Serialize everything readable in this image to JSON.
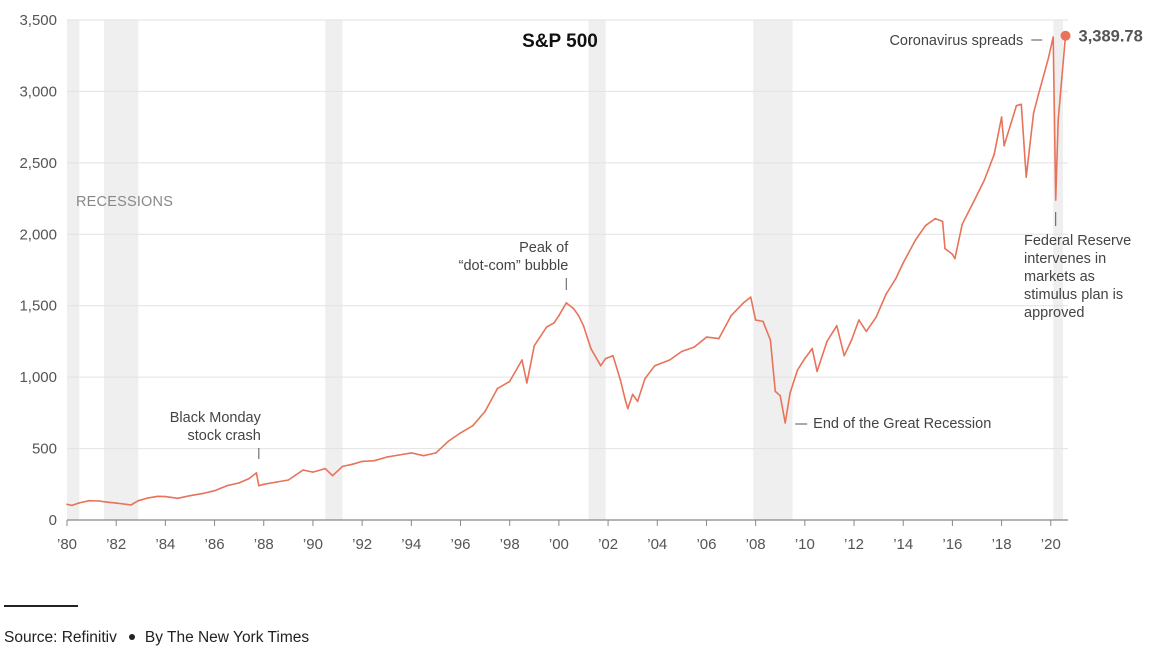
{
  "chart_data": {
    "type": "line",
    "title": "S&P 500",
    "x_start": 1980.0,
    "x_end": 2020.7,
    "ylim": [
      0,
      3500
    ],
    "grid": true,
    "y_ticks": [
      {
        "value": 0,
        "label": "0"
      },
      {
        "value": 500,
        "label": "500"
      },
      {
        "value": 1000,
        "label": "1,000"
      },
      {
        "value": 1500,
        "label": "1,500"
      },
      {
        "value": 2000,
        "label": "2,000"
      },
      {
        "value": 2500,
        "label": "2,500"
      },
      {
        "value": 3000,
        "label": "3,000"
      },
      {
        "value": 3500,
        "label": "3,500"
      }
    ],
    "x_ticks": [
      {
        "value": 1980,
        "label": "’80"
      },
      {
        "value": 1982,
        "label": "’82"
      },
      {
        "value": 1984,
        "label": "’84"
      },
      {
        "value": 1986,
        "label": "’86"
      },
      {
        "value": 1988,
        "label": "’88"
      },
      {
        "value": 1990,
        "label": "’90"
      },
      {
        "value": 1992,
        "label": "’92"
      },
      {
        "value": 1994,
        "label": "’94"
      },
      {
        "value": 1996,
        "label": "’96"
      },
      {
        "value": 1998,
        "label": "’98"
      },
      {
        "value": 2000,
        "label": "’00"
      },
      {
        "value": 2002,
        "label": "’02"
      },
      {
        "value": 2004,
        "label": "’04"
      },
      {
        "value": 2006,
        "label": "’06"
      },
      {
        "value": 2008,
        "label": "’08"
      },
      {
        "value": 2010,
        "label": "’10"
      },
      {
        "value": 2012,
        "label": "’12"
      },
      {
        "value": 2014,
        "label": "’14"
      },
      {
        "value": 2016,
        "label": "’16"
      },
      {
        "value": 2018,
        "label": "’18"
      },
      {
        "value": 2020,
        "label": "’20"
      }
    ],
    "recessions_label": "RECESSIONS",
    "recessions": [
      [
        1980.0,
        1980.5
      ],
      [
        1981.5,
        1982.9
      ],
      [
        1990.5,
        1991.2
      ],
      [
        2001.2,
        2001.9
      ],
      [
        2007.9,
        2009.5
      ],
      [
        2020.1,
        2020.5
      ]
    ],
    "series": [
      {
        "color": "#e8735a",
        "points": [
          [
            1980.0,
            110
          ],
          [
            1980.2,
            102
          ],
          [
            1980.5,
            120
          ],
          [
            1980.9,
            135
          ],
          [
            1981.3,
            133
          ],
          [
            1981.6,
            125
          ],
          [
            1982.0,
            118
          ],
          [
            1982.3,
            112
          ],
          [
            1982.6,
            105
          ],
          [
            1982.9,
            135
          ],
          [
            1983.3,
            155
          ],
          [
            1983.7,
            166
          ],
          [
            1984.0,
            164
          ],
          [
            1984.5,
            152
          ],
          [
            1985.0,
            170
          ],
          [
            1985.5,
            185
          ],
          [
            1986.0,
            205
          ],
          [
            1986.5,
            240
          ],
          [
            1987.0,
            260
          ],
          [
            1987.4,
            290
          ],
          [
            1987.7,
            330
          ],
          [
            1987.8,
            240
          ],
          [
            1988.0,
            250
          ],
          [
            1988.5,
            265
          ],
          [
            1989.0,
            280
          ],
          [
            1989.6,
            350
          ],
          [
            1990.0,
            335
          ],
          [
            1990.5,
            360
          ],
          [
            1990.8,
            310
          ],
          [
            1991.2,
            375
          ],
          [
            1991.6,
            390
          ],
          [
            1992.0,
            410
          ],
          [
            1992.5,
            415
          ],
          [
            1993.0,
            440
          ],
          [
            1993.5,
            455
          ],
          [
            1994.0,
            470
          ],
          [
            1994.5,
            450
          ],
          [
            1995.0,
            470
          ],
          [
            1995.5,
            550
          ],
          [
            1996.0,
            610
          ],
          [
            1996.5,
            660
          ],
          [
            1997.0,
            760
          ],
          [
            1997.5,
            920
          ],
          [
            1998.0,
            970
          ],
          [
            1998.5,
            1120
          ],
          [
            1998.7,
            960
          ],
          [
            1999.0,
            1220
          ],
          [
            1999.5,
            1350
          ],
          [
            1999.8,
            1380
          ],
          [
            2000.0,
            1430
          ],
          [
            2000.3,
            1520
          ],
          [
            2000.6,
            1480
          ],
          [
            2000.8,
            1430
          ],
          [
            2001.0,
            1360
          ],
          [
            2001.3,
            1200
          ],
          [
            2001.7,
            1080
          ],
          [
            2001.9,
            1130
          ],
          [
            2002.2,
            1150
          ],
          [
            2002.5,
            980
          ],
          [
            2002.7,
            840
          ],
          [
            2002.8,
            780
          ],
          [
            2003.0,
            880
          ],
          [
            2003.2,
            830
          ],
          [
            2003.5,
            990
          ],
          [
            2003.9,
            1080
          ],
          [
            2004.5,
            1120
          ],
          [
            2005.0,
            1180
          ],
          [
            2005.5,
            1210
          ],
          [
            2006.0,
            1280
          ],
          [
            2006.5,
            1270
          ],
          [
            2007.0,
            1430
          ],
          [
            2007.5,
            1520
          ],
          [
            2007.8,
            1560
          ],
          [
            2008.0,
            1400
          ],
          [
            2008.3,
            1390
          ],
          [
            2008.6,
            1260
          ],
          [
            2008.8,
            900
          ],
          [
            2009.0,
            870
          ],
          [
            2009.2,
            680
          ],
          [
            2009.4,
            890
          ],
          [
            2009.7,
            1050
          ],
          [
            2010.0,
            1130
          ],
          [
            2010.3,
            1200
          ],
          [
            2010.5,
            1040
          ],
          [
            2010.9,
            1250
          ],
          [
            2011.3,
            1360
          ],
          [
            2011.6,
            1150
          ],
          [
            2011.9,
            1260
          ],
          [
            2012.2,
            1400
          ],
          [
            2012.5,
            1320
          ],
          [
            2012.9,
            1420
          ],
          [
            2013.3,
            1580
          ],
          [
            2013.7,
            1690
          ],
          [
            2014.0,
            1800
          ],
          [
            2014.5,
            1960
          ],
          [
            2014.9,
            2060
          ],
          [
            2015.3,
            2110
          ],
          [
            2015.6,
            2090
          ],
          [
            2015.7,
            1900
          ],
          [
            2016.0,
            1860
          ],
          [
            2016.1,
            1830
          ],
          [
            2016.4,
            2070
          ],
          [
            2016.9,
            2240
          ],
          [
            2017.3,
            2380
          ],
          [
            2017.7,
            2560
          ],
          [
            2018.0,
            2820
          ],
          [
            2018.1,
            2620
          ],
          [
            2018.6,
            2900
          ],
          [
            2018.8,
            2910
          ],
          [
            2019.0,
            2400
          ],
          [
            2019.3,
            2850
          ],
          [
            2019.5,
            2980
          ],
          [
            2019.9,
            3230
          ],
          [
            2020.1,
            3380
          ],
          [
            2020.2,
            2240
          ],
          [
            2020.3,
            2800
          ],
          [
            2020.45,
            3100
          ],
          [
            2020.6,
            3389.78
          ]
        ]
      }
    ],
    "annotations": [
      {
        "lines": [
          "Black Monday",
          "stock crash"
        ],
        "x": 1987.8
      },
      {
        "lines": [
          "Peak of",
          "“dot-com” bubble"
        ],
        "x": 2000.3
      },
      {
        "lines": [
          "End of the Great Recession"
        ],
        "x": 2009.2
      },
      {
        "lines": [
          "Coronavirus spreads"
        ],
        "x": 2020.1
      },
      {
        "lines": [
          "Federal Reserve",
          "intervenes in",
          "markets as",
          "stimulus plan is",
          "approved"
        ],
        "x": 2020.2
      }
    ],
    "last_value_label": "3,389.78"
  },
  "footer": {
    "source": "Source: Refinitiv",
    "byline": "By The New York Times"
  }
}
